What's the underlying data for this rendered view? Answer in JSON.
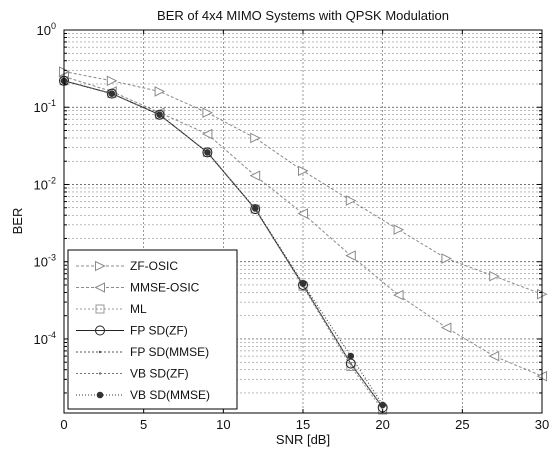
{
  "chart_data": {
    "type": "line",
    "title": "BER of 4x4 MIMO Systems with QPSK Modulation",
    "xlabel": "SNR [dB]",
    "ylabel": "BER",
    "xlim": [
      0,
      30
    ],
    "ylim": [
      1.1e-05,
      1
    ],
    "yscale": "log",
    "grid": true,
    "legend_position": "bottom-left",
    "x_ticks": [
      "0",
      "5",
      "10",
      "15",
      "20",
      "25",
      "30"
    ],
    "series": [
      {
        "name": "ZF-OSIC",
        "marker": "triangle-right",
        "x": [
          0,
          3,
          6,
          9,
          12,
          15,
          18,
          21,
          24,
          27,
          30
        ],
        "y": [
          0.29,
          0.22,
          0.16,
          0.085,
          0.04,
          0.015,
          0.0062,
          0.0026,
          0.0011,
          0.00065,
          0.00038
        ]
      },
      {
        "name": "MMSE-OSIC",
        "marker": "triangle-left",
        "x": [
          0,
          3,
          6,
          9,
          12,
          15,
          18,
          21,
          24,
          27,
          30
        ],
        "y": [
          0.25,
          0.16,
          0.085,
          0.045,
          0.013,
          0.0042,
          0.0012,
          0.00037,
          0.00014,
          6e-05,
          3.3e-05
        ]
      },
      {
        "name": "ML",
        "marker": "square",
        "x": [
          0,
          3,
          6,
          9,
          12,
          15,
          18,
          20
        ],
        "y": [
          0.22,
          0.15,
          0.08,
          0.026,
          0.0048,
          0.00048,
          4.4e-05,
          1.2e-05
        ]
      },
      {
        "name": "FP SD(ZF)",
        "marker": "circle",
        "x": [
          0,
          3,
          6,
          9,
          12,
          15,
          18,
          20
        ],
        "y": [
          0.22,
          0.15,
          0.08,
          0.026,
          0.0048,
          0.0005,
          4.8e-05,
          1.3e-05
        ]
      },
      {
        "name": "FP SD(MMSE)",
        "marker": "dot",
        "x": [
          0,
          3,
          6,
          9,
          12,
          15,
          18,
          20
        ],
        "y": [
          0.22,
          0.15,
          0.08,
          0.026,
          0.0048,
          0.0005,
          4.8e-05,
          1.3e-05
        ]
      },
      {
        "name": "VB SD(ZF)",
        "marker": "dot",
        "x": [
          0,
          3,
          6,
          9,
          12,
          15,
          18,
          20
        ],
        "y": [
          0.22,
          0.15,
          0.08,
          0.026,
          0.0048,
          0.0005,
          4.8e-05,
          1.3e-05
        ]
      },
      {
        "name": "VB SD(MMSE)",
        "marker": "star",
        "x": [
          0,
          3,
          6,
          9,
          12,
          15,
          18,
          20
        ],
        "y": [
          0.22,
          0.15,
          0.08,
          0.026,
          0.0049,
          0.00052,
          6e-05,
          1.4e-05
        ]
      }
    ]
  }
}
